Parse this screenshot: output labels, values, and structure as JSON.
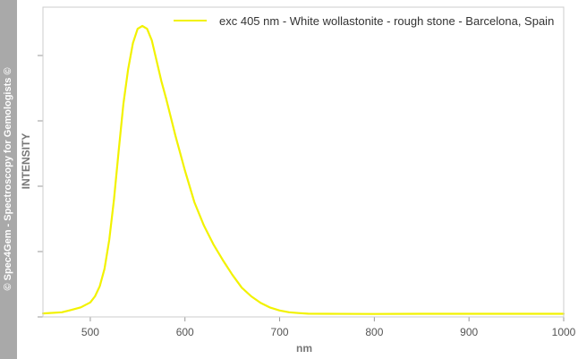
{
  "watermark": "© Spec4Gem - Spectroscopy for Gemologists ©",
  "chart_data": {
    "type": "line",
    "xlabel": "nm",
    "ylabel": "INTENSITY",
    "xlim": [
      450,
      1000
    ],
    "ylim": [
      0,
      100
    ],
    "x_ticks": [
      500,
      600,
      700,
      800,
      900,
      1000
    ],
    "y_ticks_labeled": false,
    "grid": false,
    "legend_position": "top-right",
    "series": [
      {
        "name": "exc 405 nm - White wollastonite - rough stone - Barcelona, Spain",
        "color": "#f2f200",
        "x": [
          450,
          470,
          480,
          490,
          500,
          505,
          510,
          515,
          520,
          525,
          530,
          535,
          540,
          545,
          550,
          555,
          560,
          565,
          570,
          575,
          580,
          590,
          600,
          610,
          620,
          630,
          640,
          650,
          660,
          670,
          680,
          690,
          700,
          710,
          720,
          730,
          750,
          800,
          850,
          900,
          950,
          1000
        ],
        "y": [
          0.6,
          1.0,
          1.8,
          2.7,
          4.4,
          6.5,
          10,
          16,
          26,
          40,
          57,
          73,
          85,
          94,
          99,
          100,
          99,
          95,
          88,
          81,
          75,
          62,
          50,
          39,
          31,
          24.5,
          19,
          14,
          9.5,
          6.5,
          4.2,
          2.6,
          1.6,
          1.0,
          0.7,
          0.5,
          0.45,
          0.4,
          0.45,
          0.45,
          0.45,
          0.45
        ]
      }
    ]
  }
}
